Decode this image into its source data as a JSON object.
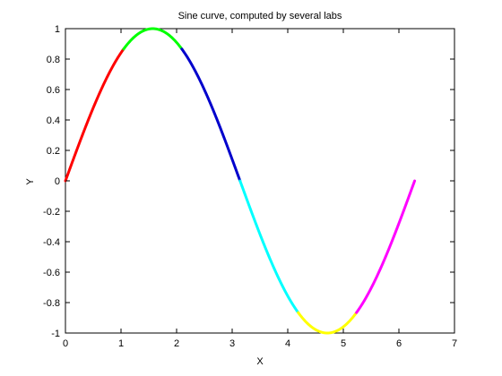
{
  "chart_data": {
    "type": "line",
    "title": "Sine curve, computed by several labs",
    "xlabel": "X",
    "ylabel": "Y",
    "xlim": [
      0,
      7
    ],
    "ylim": [
      -1,
      1
    ],
    "xticks": [
      0,
      1,
      2,
      3,
      4,
      5,
      6,
      7
    ],
    "xtick_labels": [
      "0",
      "1",
      "2",
      "3",
      "4",
      "5",
      "6",
      "7"
    ],
    "yticks": [
      -1,
      -0.8,
      -0.6,
      -0.4,
      -0.2,
      0,
      0.2,
      0.4,
      0.6,
      0.8,
      1
    ],
    "ytick_labels": [
      "-1",
      "-0.8",
      "-0.6",
      "-0.4",
      "-0.2",
      "0",
      "0.2",
      "0.4",
      "0.6",
      "0.8",
      "1"
    ],
    "grid": false,
    "legend": false,
    "function": "y = sin(x)",
    "series": [
      {
        "color": "#ff0000",
        "x_start": 0.0,
        "x_end": 1.0472
      },
      {
        "color": "#00ff00",
        "x_start": 1.0472,
        "x_end": 2.0944
      },
      {
        "color": "#0000cc",
        "x_start": 2.0944,
        "x_end": 3.1416
      },
      {
        "color": "#00ffff",
        "x_start": 3.1416,
        "x_end": 4.1888
      },
      {
        "color": "#ffff00",
        "x_start": 4.1888,
        "x_end": 5.236
      },
      {
        "color": "#ff00ff",
        "x_start": 5.236,
        "x_end": 6.2832
      }
    ]
  }
}
